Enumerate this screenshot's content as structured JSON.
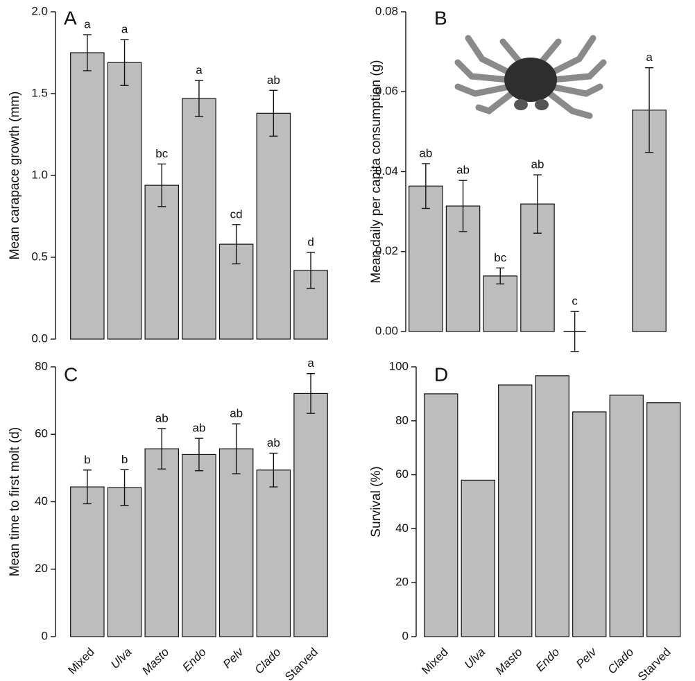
{
  "chart_data": [
    {
      "type": "bar",
      "title": "A",
      "ylabel": "Mean carapace growth (mm)",
      "values": [
        1.75,
        1.69,
        0.94,
        1.47,
        0.58,
        1.38,
        0.42
      ],
      "errors": [
        0.11,
        0.14,
        0.13,
        0.11,
        0.12,
        0.14,
        0.11
      ],
      "annotations": [
        "a",
        "a",
        "bc",
        "a",
        "cd",
        "ab",
        "d"
      ],
      "ylim": [
        0,
        2
      ],
      "yticks": [
        {
          "value": 0,
          "label": "0.0"
        },
        0.5,
        {
          "value": 1,
          "label": "1.0"
        },
        1.5,
        {
          "value": 2,
          "label": "2.0"
        }
      ],
      "color": "#bdbdbd"
    },
    {
      "type": "bar",
      "title": "B",
      "ylabel": "Mean daily per capita consumption (g)",
      "values": [
        0.0364,
        0.0314,
        0.0139,
        0.0319,
        0.0,
        null,
        0.0554
      ],
      "errors": [
        0.0056,
        0.0064,
        0.002,
        0.0073,
        0.005,
        null,
        0.0106
      ],
      "annotations": [
        "ab",
        "ab",
        "bc",
        "ab",
        "c",
        null,
        "a"
      ],
      "ylim": [
        0,
        0.08
      ],
      "yticks": [
        {
          "value": 0,
          "label": "0.00"
        },
        {
          "value": 0.02,
          "label": "0.02"
        },
        {
          "value": 0.04,
          "label": "0.04"
        },
        {
          "value": 0.06,
          "label": "0.06"
        },
        {
          "value": 0.08,
          "label": "0.08"
        }
      ],
      "color": "#bdbdbd"
    },
    {
      "type": "bar",
      "title": "C",
      "ylabel": "Mean time to first molt (d)",
      "categories": [
        "Mixed",
        "Ulva",
        "Masto",
        "Endo",
        "Pelv",
        "Clado",
        "Starved"
      ],
      "category_italic": [
        false,
        true,
        true,
        true,
        true,
        true,
        false
      ],
      "values": [
        44.4,
        44.2,
        55.7,
        54.0,
        55.7,
        49.4,
        72.1
      ],
      "errors": [
        5.0,
        5.3,
        6.0,
        4.8,
        7.4,
        5.0,
        5.9
      ],
      "annotations": [
        "b",
        "b",
        "ab",
        "ab",
        "ab",
        "ab",
        "a"
      ],
      "ylim": [
        0,
        80
      ],
      "yticks": [
        0,
        20,
        40,
        60,
        80
      ],
      "color": "#bdbdbd"
    },
    {
      "type": "bar",
      "title": "D",
      "ylabel": "Survival (%)",
      "categories": [
        "Mixed",
        "Ulva",
        "Masto",
        "Endo",
        "Pelv",
        "Clado",
        "Starved"
      ],
      "category_italic": [
        false,
        true,
        true,
        true,
        true,
        true,
        false
      ],
      "values": [
        90.0,
        58.0,
        93.3,
        96.7,
        83.3,
        89.5,
        86.7
      ],
      "ylim": [
        0,
        100
      ],
      "yticks": [
        0,
        20,
        40,
        60,
        80,
        100
      ],
      "color": "#bdbdbd"
    }
  ]
}
